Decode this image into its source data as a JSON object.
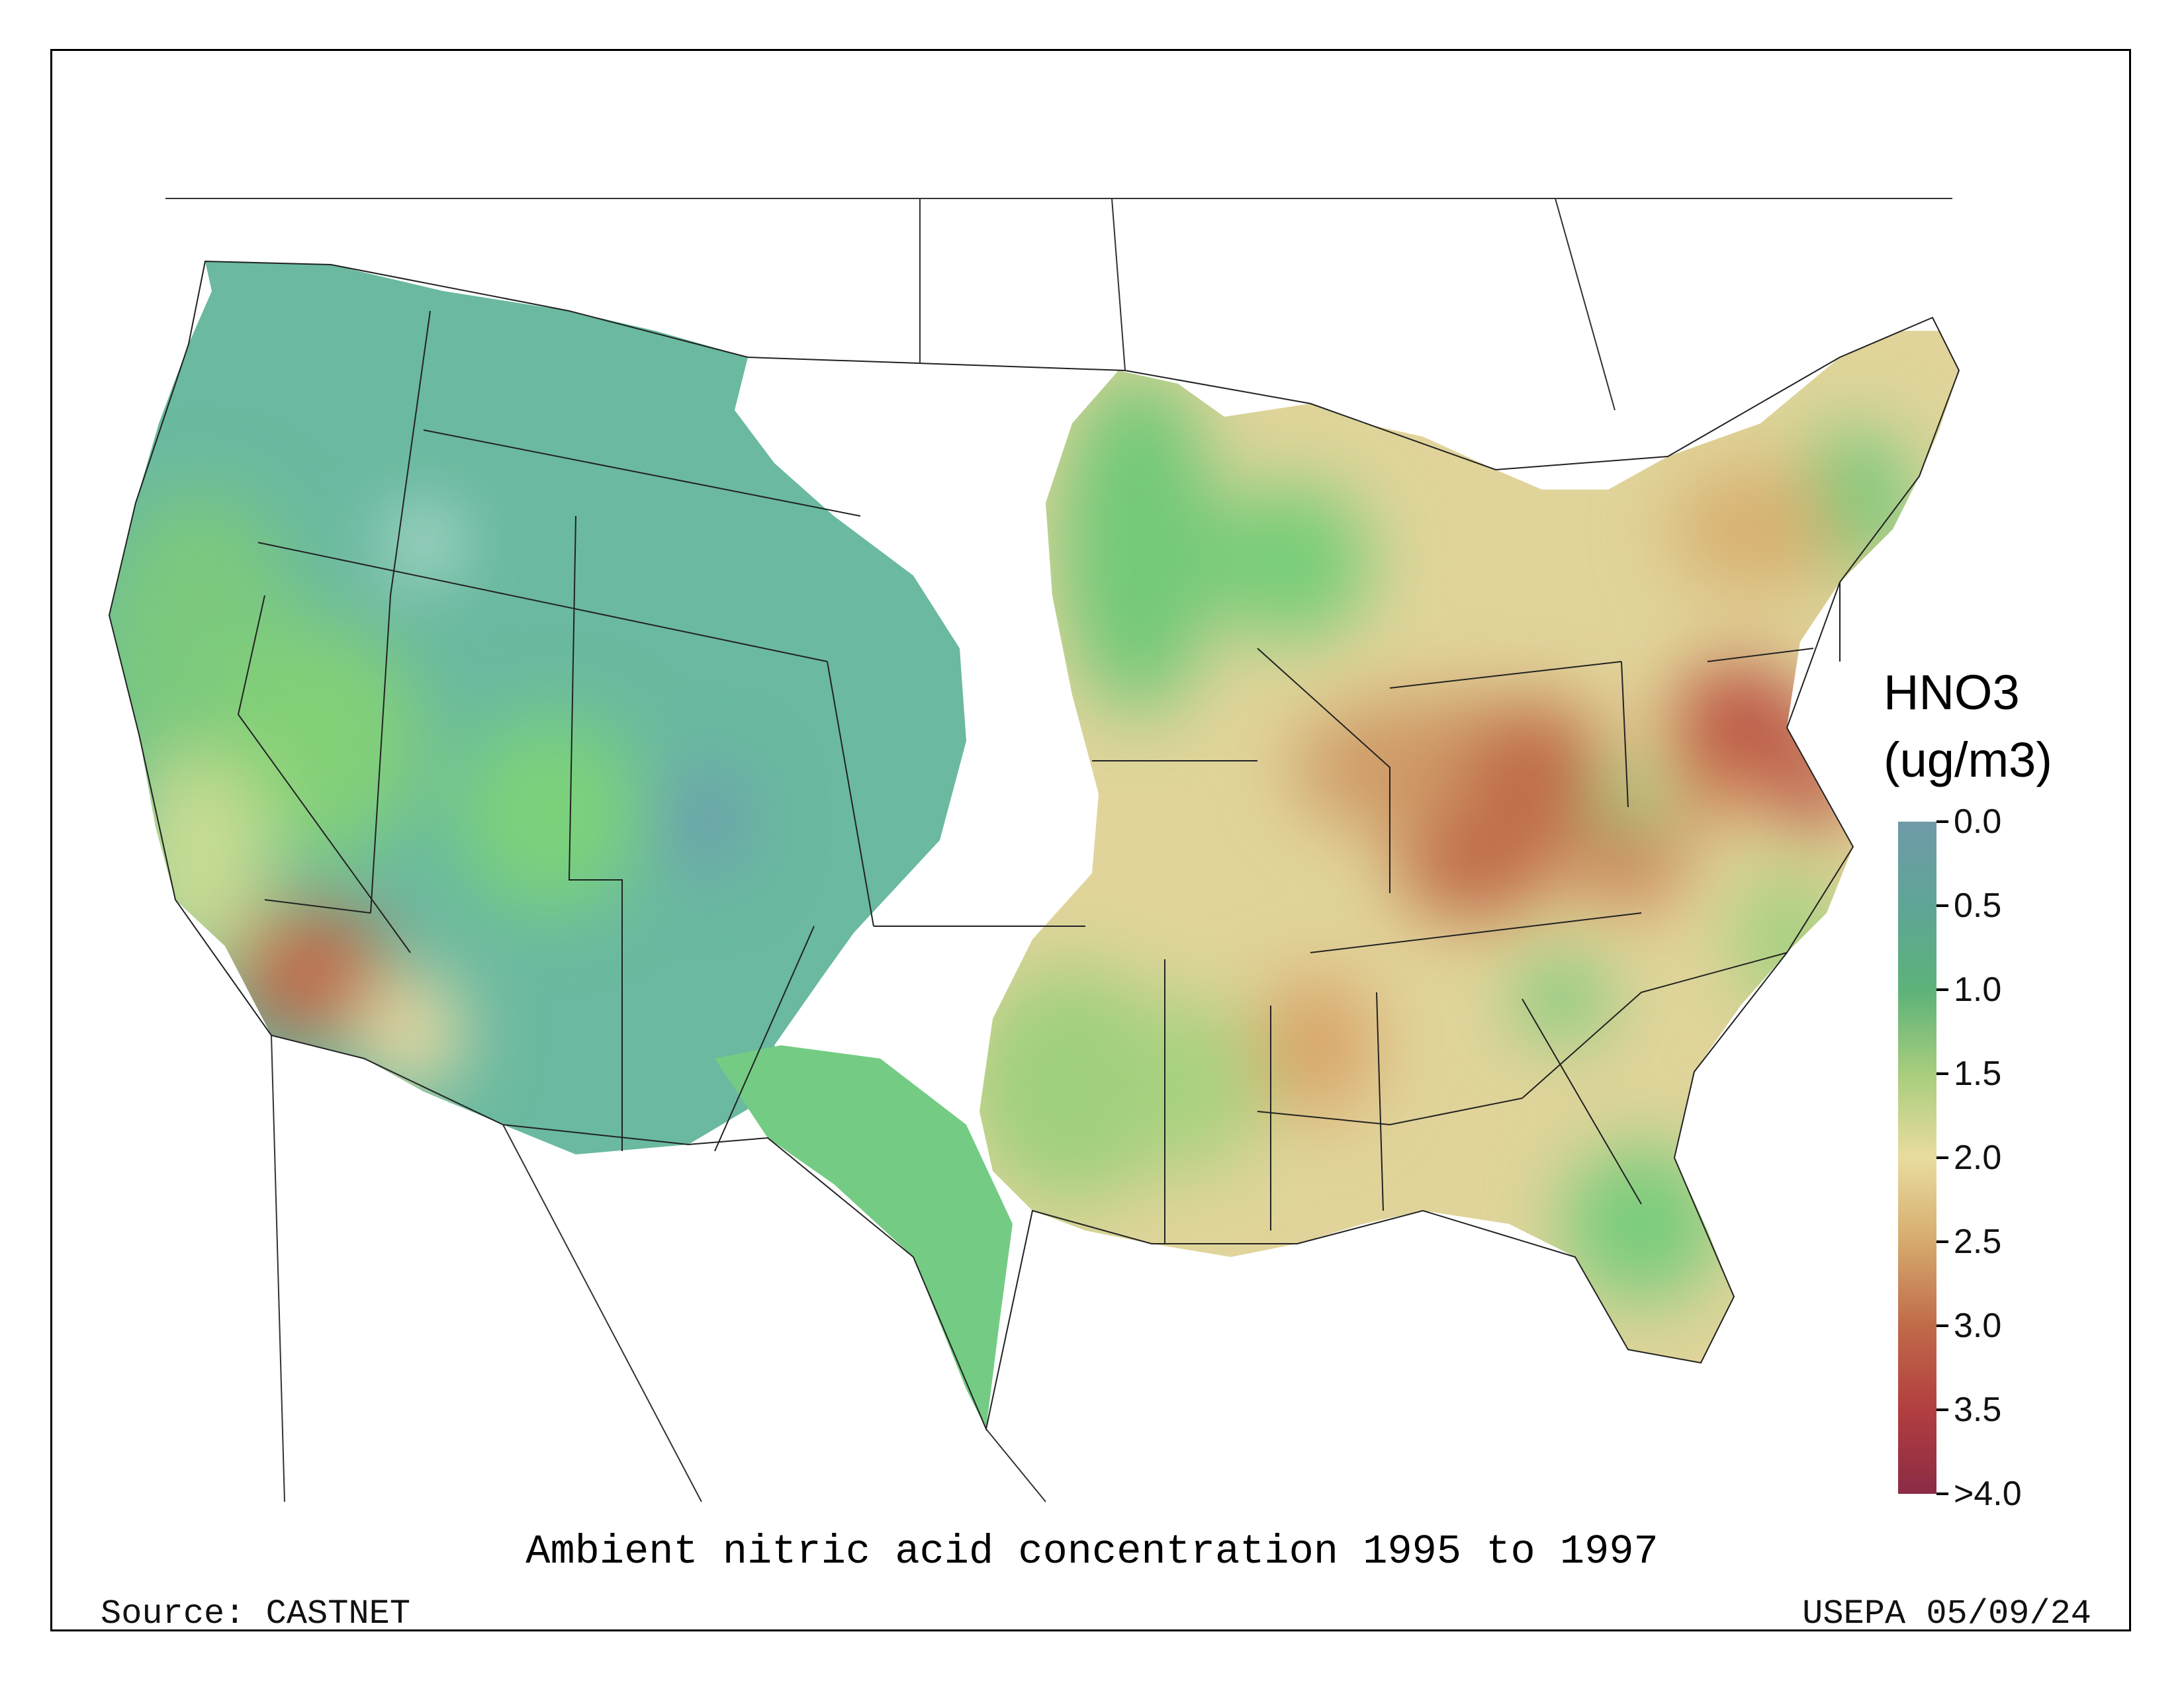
{
  "legend": {
    "title_line1": "HNO3",
    "title_line2": "(ug/m3)",
    "ticks": [
      "0.0",
      "0.5",
      "1.0",
      "1.5",
      "2.0",
      "2.5",
      "3.0",
      "3.5",
      ">4.0"
    ],
    "colors": [
      "#6f9aa8",
      "#5fa596",
      "#5cb27a",
      "#a8cd7d",
      "#e9dc9e",
      "#d6aa6e",
      "#c06a49",
      "#b23e3f",
      "#8b2b46"
    ]
  },
  "caption": "Ambient nitric acid concentration 1995 to 1997",
  "source": "Source: CASTNET",
  "stamp": "USEPA 05/09/24"
}
